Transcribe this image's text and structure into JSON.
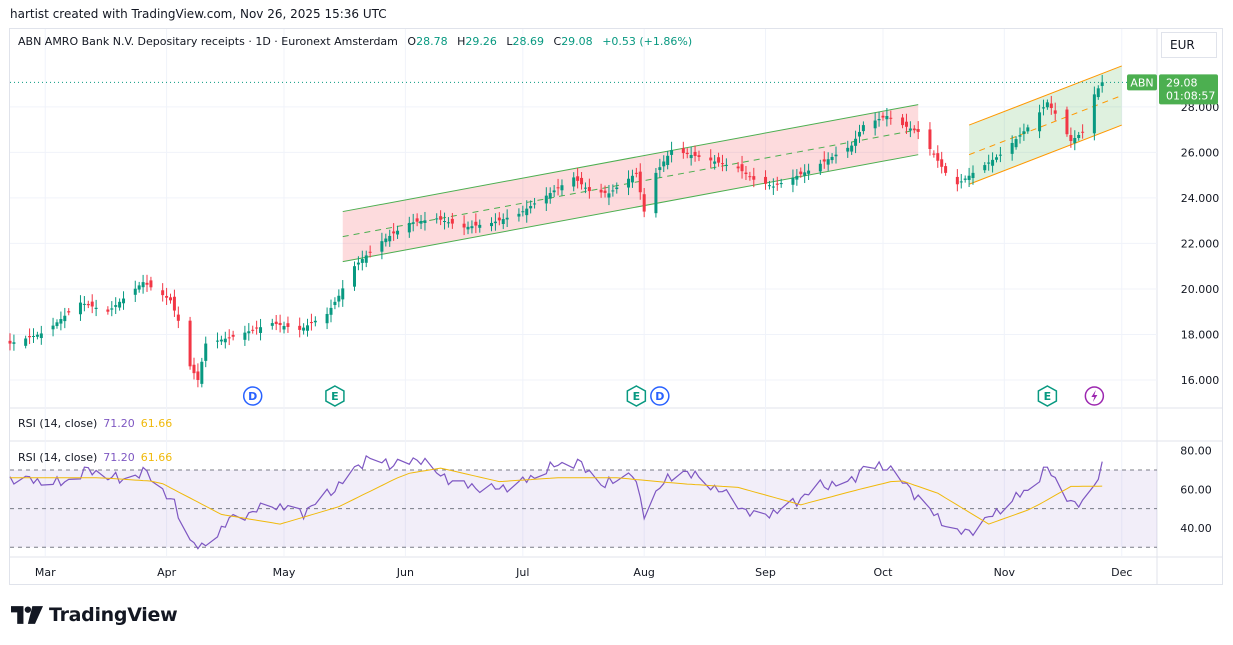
{
  "attribution": "hartist created with TradingView.com, Nov 26, 2025 15:36 UTC",
  "legend": {
    "title": "ABN AMRO Bank N.V. Depositary receipts · 1D · Euronext Amsterdam",
    "o_label": "O",
    "o_value": "28.78",
    "h_label": "H",
    "h_value": "29.26",
    "l_label": "L",
    "l_value": "28.69",
    "c_label": "C",
    "c_value": "29.08",
    "change": "+0.53 (+1.86%)"
  },
  "currency": "EUR",
  "price_badge": {
    "symbol": "ABN",
    "price": "29.08",
    "countdown": "01:08:57"
  },
  "rsi": {
    "label": "RSI (14, close)",
    "value": "71.20",
    "ma": "61.66"
  },
  "logo_text": "TradingView",
  "colors": {
    "up": "#089981",
    "down": "#f23645",
    "rsi": "#7e57c2",
    "rsi_ma": "#f0b90b",
    "channel1": "#4caf50",
    "channel2": "#ff9800",
    "price_badge": "#4caf50"
  },
  "events": [
    {
      "type": "D",
      "date": "2025-04-23"
    },
    {
      "type": "E",
      "date": "2025-05-14"
    },
    {
      "type": "E",
      "date": "2025-07-30"
    },
    {
      "type": "D",
      "date": "2025-08-05"
    },
    {
      "type": "E",
      "date": "2025-11-12"
    },
    {
      "type": "flash-icon",
      "date": "2025-11-24"
    }
  ],
  "chart_data": [
    {
      "type": "candlestick",
      "title": "ABN AMRO Bank N.V. Depositary receipts · 1D · Euronext Amsterdam",
      "x_range": [
        "2025-02-20",
        "2025-12-10"
      ],
      "ylim": [
        14.9,
        30.5
      ],
      "y_ticks": [
        "16.000",
        "18.000",
        "20.000",
        "22.000",
        "24.000",
        "26.000",
        "28.000"
      ],
      "x_ticks": [
        {
          "label": "Mar",
          "date": "2025-03-01"
        },
        {
          "label": "Apr",
          "date": "2025-04-01"
        },
        {
          "label": "May",
          "date": "2025-05-01"
        },
        {
          "label": "Jun",
          "date": "2025-06-01"
        },
        {
          "label": "Jul",
          "date": "2025-07-01"
        },
        {
          "label": "Aug",
          "date": "2025-08-01"
        },
        {
          "label": "Sep",
          "date": "2025-09-01"
        },
        {
          "label": "Oct",
          "date": "2025-10-01"
        },
        {
          "label": "Nov",
          "date": "2025-11-01"
        },
        {
          "label": "Dec",
          "date": "2025-12-01"
        }
      ],
      "close_anchors": [
        [
          "2025-02-20",
          17.6
        ],
        [
          "2025-03-01",
          18.1
        ],
        [
          "2025-03-10",
          19.4
        ],
        [
          "2025-03-17",
          19.0
        ],
        [
          "2025-03-26",
          20.3
        ],
        [
          "2025-04-02",
          19.5
        ],
        [
          "2025-04-04",
          18.6
        ],
        [
          "2025-04-07",
          16.6
        ],
        [
          "2025-04-09",
          16.0
        ],
        [
          "2025-04-11",
          17.6
        ],
        [
          "2025-04-18",
          17.9
        ],
        [
          "2025-04-28",
          18.5
        ],
        [
          "2025-05-05",
          18.2
        ],
        [
          "2025-05-12",
          18.9
        ],
        [
          "2025-05-15",
          19.7
        ],
        [
          "2025-05-19",
          21.0
        ],
        [
          "2025-05-26",
          22.1
        ],
        [
          "2025-06-02",
          22.9
        ],
        [
          "2025-06-09",
          23.1
        ],
        [
          "2025-06-16",
          22.7
        ],
        [
          "2025-06-23",
          22.9
        ],
        [
          "2025-06-30",
          23.3
        ],
        [
          "2025-07-07",
          24.1
        ],
        [
          "2025-07-14",
          24.9
        ],
        [
          "2025-07-18",
          24.3
        ],
        [
          "2025-07-23",
          24.2
        ],
        [
          "2025-07-30",
          25.1
        ],
        [
          "2025-08-01",
          23.4
        ],
        [
          "2025-08-04",
          25.1
        ],
        [
          "2025-08-08",
          26.1
        ],
        [
          "2025-08-15",
          25.8
        ],
        [
          "2025-08-25",
          25.3
        ],
        [
          "2025-08-29",
          24.8
        ],
        [
          "2025-09-03",
          24.5
        ],
        [
          "2025-09-12",
          25.2
        ],
        [
          "2025-09-19",
          25.9
        ],
        [
          "2025-09-23",
          26.3
        ],
        [
          "2025-09-26",
          27.2
        ],
        [
          "2025-10-02",
          27.6
        ],
        [
          "2025-10-06",
          27.2
        ],
        [
          "2025-10-10",
          26.9
        ],
        [
          "2025-10-14",
          25.9
        ],
        [
          "2025-10-17",
          25.1
        ],
        [
          "2025-10-20",
          24.6
        ],
        [
          "2025-10-24",
          25.1
        ],
        [
          "2025-10-31",
          25.9
        ],
        [
          "2025-11-07",
          27.1
        ],
        [
          "2025-11-12",
          28.2
        ],
        [
          "2025-11-14",
          27.7
        ],
        [
          "2025-11-18",
          26.5
        ],
        [
          "2025-11-21",
          26.9
        ],
        [
          "2025-11-24",
          28.55
        ],
        [
          "2025-11-26",
          29.08
        ]
      ],
      "channels": [
        {
          "name": "",
          "color": "#4caf50",
          "fill": "rgba(242,54,69,0.18)",
          "start": "2025-05-16",
          "end": "2025-10-10",
          "upper": [
            23.4,
            28.1
          ],
          "mid": [
            22.3,
            27.0
          ],
          "lower": [
            21.2,
            25.9
          ]
        },
        {
          "name": "",
          "color": "#ff9800",
          "fill": "rgba(76,175,80,0.18)",
          "start": "2025-10-23",
          "end": "2025-12-01",
          "upper": [
            27.2,
            29.8
          ],
          "mid": [
            25.9,
            28.5
          ],
          "lower": [
            24.6,
            27.2
          ]
        }
      ]
    },
    {
      "type": "line",
      "title": "RSI (14, close)",
      "ylim": [
        26,
        84
      ],
      "y_ticks": [
        "40.00",
        "60.00",
        "80.00"
      ],
      "bands": [
        30,
        50,
        70
      ],
      "series": [
        {
          "name": "RSI (14, close)",
          "color": "#7e57c2",
          "anchors": [
            [
              "2025-02-20",
              66
            ],
            [
              "2025-03-05",
              63
            ],
            [
              "2025-03-12",
              70
            ],
            [
              "2025-03-20",
              65
            ],
            [
              "2025-03-27",
              69
            ],
            [
              "2025-04-03",
              52
            ],
            [
              "2025-04-07",
              34
            ],
            [
              "2025-04-10",
              29
            ],
            [
              "2025-04-17",
              44
            ],
            [
              "2025-04-28",
              52
            ],
            [
              "2025-05-06",
              48
            ],
            [
              "2025-05-15",
              62
            ],
            [
              "2025-05-22",
              76
            ],
            [
              "2025-05-28",
              73
            ],
            [
              "2025-06-02",
              74
            ],
            [
              "2025-06-05",
              76
            ],
            [
              "2025-06-09",
              68
            ],
            [
              "2025-06-16",
              62
            ],
            [
              "2025-06-24",
              60
            ],
            [
              "2025-07-01",
              64
            ],
            [
              "2025-07-10",
              73
            ],
            [
              "2025-07-15",
              74
            ],
            [
              "2025-07-22",
              62
            ],
            [
              "2025-07-29",
              69
            ],
            [
              "2025-08-01",
              47
            ],
            [
              "2025-08-05",
              62
            ],
            [
              "2025-08-11",
              70
            ],
            [
              "2025-08-20",
              60
            ],
            [
              "2025-08-29",
              46
            ],
            [
              "2025-09-05",
              49
            ],
            [
              "2025-09-15",
              62
            ],
            [
              "2025-09-22",
              63
            ],
            [
              "2025-09-26",
              71
            ],
            [
              "2025-10-02",
              72
            ],
            [
              "2025-10-09",
              58
            ],
            [
              "2025-10-14",
              47
            ],
            [
              "2025-10-20",
              37
            ],
            [
              "2025-10-25",
              40
            ],
            [
              "2025-10-31",
              50
            ],
            [
              "2025-11-07",
              60
            ],
            [
              "2025-11-12",
              71
            ],
            [
              "2025-11-14",
              65
            ],
            [
              "2025-11-19",
              51
            ],
            [
              "2025-11-22",
              55
            ],
            [
              "2025-11-26",
              71.2
            ]
          ]
        },
        {
          "name": "",
          "color": "#f0b90b",
          "anchors": [
            [
              "2025-02-20",
              66
            ],
            [
              "2025-03-15",
              66
            ],
            [
              "2025-03-30",
              64
            ],
            [
              "2025-04-15",
              47
            ],
            [
              "2025-04-30",
              42
            ],
            [
              "2025-05-15",
              51
            ],
            [
              "2025-06-01",
              68
            ],
            [
              "2025-06-10",
              71
            ],
            [
              "2025-06-25",
              64
            ],
            [
              "2025-07-10",
              66
            ],
            [
              "2025-07-25",
              66
            ],
            [
              "2025-08-10",
              63
            ],
            [
              "2025-08-25",
              61
            ],
            [
              "2025-09-10",
              52
            ],
            [
              "2025-09-25",
              60
            ],
            [
              "2025-10-05",
              65
            ],
            [
              "2025-10-15",
              58
            ],
            [
              "2025-10-28",
              42
            ],
            [
              "2025-11-08",
              50
            ],
            [
              "2025-11-18",
              61.5
            ],
            [
              "2025-11-26",
              61.66
            ]
          ]
        }
      ]
    }
  ]
}
